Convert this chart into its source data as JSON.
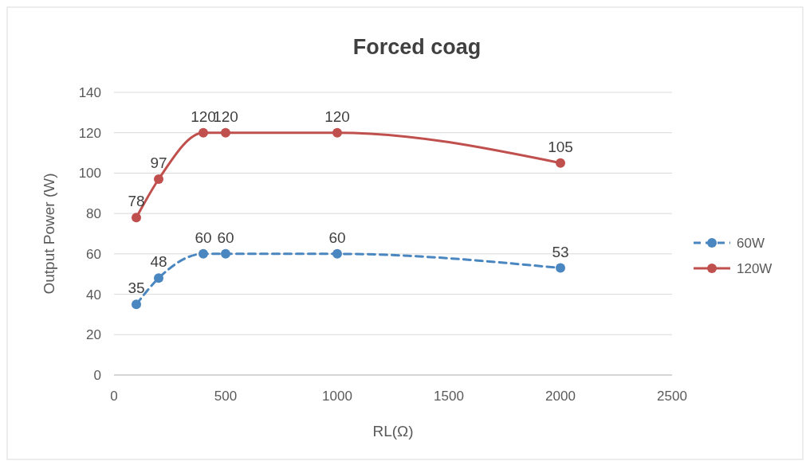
{
  "chart_data": {
    "type": "line",
    "title": "Forced coag",
    "xlabel": "RL(Ω)",
    "ylabel": "Output Power (W)",
    "x": [
      100,
      200,
      400,
      500,
      1000,
      2000
    ],
    "series": [
      {
        "name": "60W",
        "color": "#4a86c0",
        "values": [
          35,
          48,
          60,
          60,
          60,
          53
        ],
        "line_style": "dashed"
      },
      {
        "name": "120W",
        "color": "#c0504d",
        "values": [
          78,
          97,
          120,
          120,
          120,
          105
        ],
        "line_style": "solid"
      }
    ],
    "xlim": [
      0,
      2500
    ],
    "xticks": [
      0,
      500,
      1000,
      1500,
      2000,
      2500
    ],
    "ylim": [
      0,
      140
    ],
    "yticks": [
      0,
      20,
      40,
      60,
      80,
      100,
      120,
      140
    ],
    "grid": "y",
    "legend": "right",
    "marker": "circle",
    "data_labels": true
  }
}
